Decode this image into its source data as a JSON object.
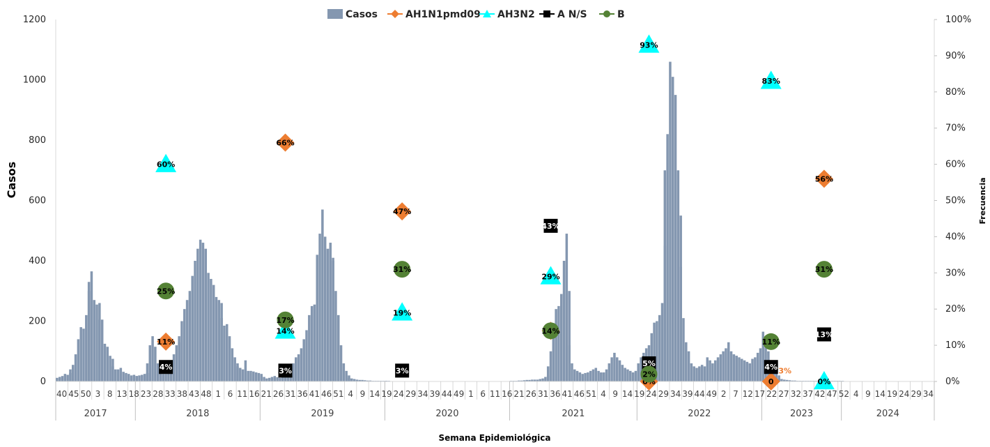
{
  "chart_data": {
    "type": "bar",
    "title": "",
    "xlabel": "Semana Epidemiológica",
    "ylabel": "Casos",
    "y2label": "Frecuencia",
    "ylim": [
      0,
      1200
    ],
    "y_ticks": [
      "0",
      "200",
      "400",
      "600",
      "800",
      "1000",
      "1200"
    ],
    "y2lim": [
      0,
      100
    ],
    "y2_ticks": [
      "0%",
      "10%",
      "20%",
      "30%",
      "40%",
      "50%",
      "60%",
      "70%",
      "80%",
      "90%",
      "100%"
    ],
    "grid": false,
    "legend_position": "top",
    "legend": [
      {
        "name": "Casos",
        "marker": "bar",
        "color": "#8497b0"
      },
      {
        "name": "AH1N1pmd09",
        "marker": "diamond",
        "color": "#ed7d31"
      },
      {
        "name": "AH3N2",
        "marker": "triangle",
        "color": "#00ffff"
      },
      {
        "name": "A N/S",
        "marker": "square",
        "color": "#000000"
      },
      {
        "name": "B",
        "marker": "circle",
        "color": "#548235"
      }
    ],
    "years": [
      {
        "label": "2017",
        "start": 0,
        "end": 30
      },
      {
        "label": "2018",
        "start": 30,
        "end": 77
      },
      {
        "label": "2019",
        "start": 77,
        "end": 124
      },
      {
        "label": "2020",
        "start": 124,
        "end": 171
      },
      {
        "label": "2021",
        "start": 171,
        "end": 219
      },
      {
        "label": "2022",
        "start": 219,
        "end": 266
      },
      {
        "label": "2023",
        "start": 266,
        "end": 296
      },
      {
        "label": "2024",
        "start": 296,
        "end": 331
      }
    ],
    "week_tick_labels": [
      "40",
      "45",
      "50",
      "3",
      "8",
      "13",
      "18",
      "23",
      "28",
      "33",
      "38",
      "43",
      "48",
      "1",
      "6",
      "11",
      "16",
      "21",
      "26",
      "31",
      "36",
      "41",
      "46",
      "51",
      "4",
      "9",
      "14",
      "19",
      "24",
      "29",
      "34",
      "39",
      "44",
      "49",
      "1",
      "6",
      "11",
      "16",
      "21",
      "26",
      "31",
      "36",
      "41",
      "46",
      "51",
      "4",
      "9",
      "14",
      "19",
      "24",
      "29",
      "34",
      "39",
      "44",
      "49",
      "2",
      "7",
      "12",
      "17",
      "22",
      "27",
      "32",
      "37",
      "42",
      "47",
      "52",
      "4",
      "9",
      "14",
      "19",
      "24",
      "29",
      "34"
    ],
    "casos": [
      {
        "x_start": 0,
        "x_end": 5,
        "values": [
          12,
          15,
          18,
          25,
          22,
          28
        ]
      },
      {
        "x_start": 5,
        "x_end": 12,
        "values": [
          40,
          55,
          90,
          140,
          180,
          175,
          220,
          300
        ]
      },
      {
        "x_start": 12,
        "x_end": 16,
        "values": [
          330,
          365,
          270,
          255,
          260
        ]
      },
      {
        "x_start": 16,
        "x_end": 21,
        "values": [
          205,
          205,
          125,
          115,
          85,
          75
        ]
      },
      {
        "x_start": 21,
        "x_end": 30,
        "values": [
          50,
          40,
          40,
          45,
          32,
          28,
          25,
          20,
          22,
          18
        ]
      },
      {
        "x_start": 30,
        "x_end": 34,
        "values": [
          18,
          20,
          22,
          25,
          28
        ]
      },
      {
        "x_start": 34,
        "x_end": 40,
        "values": [
          60,
          120,
          150,
          115,
          60,
          35,
          25
        ]
      },
      {
        "x_start": 40,
        "x_end": 46,
        "values": [
          20,
          25,
          45,
          60,
          90,
          120,
          130
        ]
      },
      {
        "x_start": 46,
        "x_end": 56,
        "values": [
          150,
          200,
          240,
          270,
          300,
          350,
          400,
          440,
          470,
          460,
          440
        ]
      },
      {
        "x_start": 56,
        "x_end": 62,
        "values": [
          420,
          360,
          340,
          320,
          280,
          270,
          260
        ]
      },
      {
        "x_start": 62,
        "x_end": 68,
        "values": [
          210,
          185,
          190,
          150,
          110,
          80,
          60
        ]
      },
      {
        "x_start": 68,
        "x_end": 77,
        "values": [
          50,
          45,
          40,
          70,
          35,
          35,
          33,
          30,
          28,
          25
        ]
      },
      {
        "x_start": 77,
        "x_end": 90,
        "values": [
          20,
          15,
          10,
          12,
          15,
          18,
          14,
          12,
          15,
          20,
          30,
          45,
          60,
          75
        ]
      },
      {
        "x_start": 90,
        "x_end": 98,
        "values": [
          80,
          90,
          110,
          140,
          170,
          220,
          250,
          255,
          330
        ]
      },
      {
        "x_start": 98,
        "x_end": 104,
        "values": [
          420,
          490,
          570,
          480,
          440,
          460,
          410
        ]
      },
      {
        "x_start": 104,
        "x_end": 110,
        "values": [
          400,
          300,
          220,
          120,
          60,
          35,
          20
        ]
      },
      {
        "x_start": 110,
        "x_end": 124,
        "values": [
          12,
          10,
          8,
          6,
          5,
          5,
          4,
          3,
          3,
          2,
          2,
          2,
          2,
          2,
          2
        ]
      },
      {
        "x_start": 124,
        "x_end": 171,
        "values": [
          2,
          2,
          1,
          1,
          1,
          1,
          1,
          1,
          1,
          1,
          1,
          1,
          1,
          1,
          1,
          1,
          1,
          1,
          1,
          1,
          1,
          1,
          1,
          1,
          1,
          1,
          1,
          1,
          1,
          1,
          1,
          1,
          1,
          1,
          1,
          1,
          1,
          1,
          1,
          1,
          1,
          1,
          1,
          1,
          1,
          1,
          1,
          1
        ]
      },
      {
        "x_start": 171,
        "x_end": 185,
        "values": [
          2,
          2,
          2,
          3,
          3,
          4,
          5,
          5,
          6,
          6,
          6,
          8,
          10,
          15,
          20
        ]
      },
      {
        "x_start": 185,
        "x_end": 193,
        "values": [
          50,
          100,
          160,
          240,
          250,
          290,
          400,
          490,
          300
        ]
      },
      {
        "x_start": 193,
        "x_end": 205,
        "values": [
          120,
          60,
          40,
          35,
          30,
          25,
          28,
          30,
          35,
          40,
          45,
          35,
          30
        ]
      },
      {
        "x_start": 205,
        "x_end": 219,
        "values": [
          28,
          30,
          40,
          60,
          80,
          95,
          80,
          70,
          55,
          45,
          40,
          35,
          30,
          35,
          40
        ]
      },
      {
        "x_start": 219,
        "x_end": 229,
        "values": [
          60,
          80,
          95,
          110,
          120,
          160,
          195,
          200,
          220,
          260,
          450
        ]
      },
      {
        "x_start": 229,
        "x_end": 235,
        "values": [
          700,
          820,
          1060,
          1010,
          950,
          700,
          550
        ]
      },
      {
        "x_start": 235,
        "x_end": 242,
        "values": [
          380,
          210,
          130,
          100,
          60,
          50,
          45,
          45
        ]
      },
      {
        "x_start": 242,
        "x_end": 256,
        "values": [
          50,
          55,
          50,
          80,
          70,
          60,
          70,
          80,
          90,
          100,
          110,
          130,
          100,
          90,
          85
        ]
      },
      {
        "x_start": 256,
        "x_end": 266,
        "values": [
          85,
          80,
          75,
          70,
          65,
          60,
          75,
          80,
          95,
          110,
          130
        ]
      },
      {
        "x_start": 266,
        "x_end": 272,
        "values": [
          165,
          150,
          100,
          70,
          50,
          35,
          20
        ]
      },
      {
        "x_start": 272,
        "x_end": 296,
        "values": [
          10,
          8,
          6,
          5,
          4,
          3,
          3,
          2,
          2,
          2,
          2,
          2,
          2,
          2,
          2,
          2,
          2,
          2,
          2,
          2,
          2,
          2,
          2,
          2,
          2
        ]
      }
    ],
    "series": [
      {
        "name": "AH1N1pmd09",
        "marker": "diamond",
        "color": "#ed7d31",
        "points": [
          {
            "x": 41,
            "y": 11,
            "label": "11%"
          },
          {
            "x": 86,
            "y": 66,
            "label": "66%"
          },
          {
            "x": 130,
            "y": 47,
            "label": "47%"
          },
          {
            "x": 186,
            "y": 14,
            "label": "14%"
          },
          {
            "x": 223,
            "y": 0,
            "label": "0%"
          },
          {
            "x": 269,
            "y": 0,
            "label": "0"
          },
          {
            "x": 289,
            "y": 56,
            "label": "56%"
          }
        ]
      },
      {
        "name": "AH3N2",
        "marker": "triangle",
        "color": "#00ffff",
        "points": [
          {
            "x": 41,
            "y": 60,
            "label": "60%"
          },
          {
            "x": 86,
            "y": 14,
            "label": "14%"
          },
          {
            "x": 130,
            "y": 19,
            "label": "19%"
          },
          {
            "x": 186,
            "y": 29,
            "label": "29%"
          },
          {
            "x": 223,
            "y": 93,
            "label": "93%"
          },
          {
            "x": 269,
            "y": 83,
            "label": "83%"
          },
          {
            "x": 289,
            "y": 0,
            "label": "0%"
          }
        ]
      },
      {
        "name": "A N/S",
        "marker": "square",
        "color": "#000000",
        "points": [
          {
            "x": 41,
            "y": 4,
            "label": "4%"
          },
          {
            "x": 86,
            "y": 3,
            "label": "3%"
          },
          {
            "x": 130,
            "y": 3,
            "label": "3%"
          },
          {
            "x": 186,
            "y": 43,
            "label": "43%"
          },
          {
            "x": 223,
            "y": 5,
            "label": "5%"
          },
          {
            "x": 269,
            "y": 4,
            "label": "4%"
          },
          {
            "x": 289,
            "y": 13,
            "label": "13%"
          }
        ]
      },
      {
        "name": "B",
        "marker": "circle",
        "color": "#548235",
        "points": [
          {
            "x": 41,
            "y": 25,
            "label": "25%"
          },
          {
            "x": 86,
            "y": 17,
            "label": "17%"
          },
          {
            "x": 130,
            "y": 31,
            "label": "31%"
          },
          {
            "x": 186,
            "y": 14,
            "label": "14%"
          },
          {
            "x": 223,
            "y": 2,
            "label": "2%"
          },
          {
            "x": 269,
            "y": 11,
            "label": "11%"
          },
          {
            "x": 289,
            "y": 31,
            "label": "31%"
          }
        ]
      }
    ],
    "extra_labels": [
      {
        "x": 269,
        "y": 3,
        "label": "3%",
        "color": "#ed7d31"
      }
    ]
  }
}
